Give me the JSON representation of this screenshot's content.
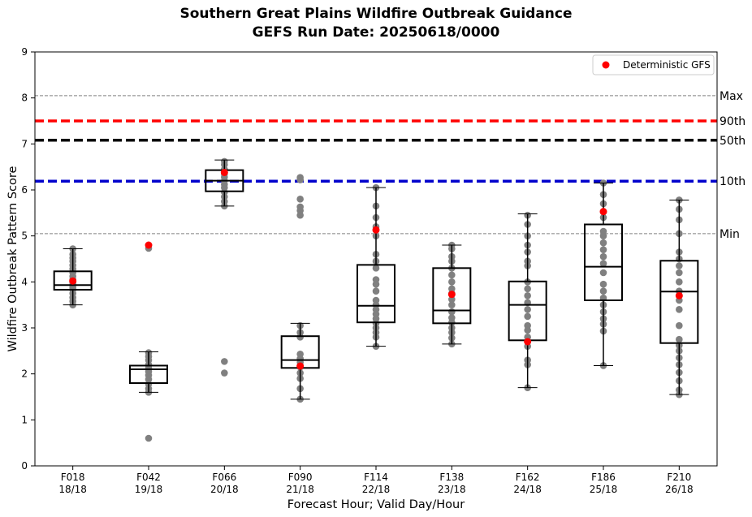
{
  "chart_data": {
    "type": "box",
    "title": "Southern Great Plains Wildfire Outbreak Guidance",
    "subtitle": "GEFS Run Date: 20250618/0000",
    "xlabel": "Forecast Hour; Valid Day/Hour",
    "ylabel": "Wildfire Outbreak Pattern Score",
    "ylim": [
      0,
      9
    ],
    "yticks": [
      "0",
      "1",
      "2",
      "3",
      "4",
      "5",
      "6",
      "7",
      "8",
      "9"
    ],
    "grid": false,
    "legend": {
      "position": "top-right",
      "entries": [
        {
          "label": "Deterministic GFS",
          "color": "#ff0000",
          "marker": "circle"
        }
      ]
    },
    "reference_lines": [
      {
        "label": "Max",
        "value": 8.05,
        "color": "#808080",
        "style": "thin-dashed"
      },
      {
        "label": "90th",
        "value": 7.5,
        "color": "#ff0000",
        "style": "thick-dashed"
      },
      {
        "label": "50th",
        "value": 7.08,
        "color": "#000000",
        "style": "thick-dashed"
      },
      {
        "label": "10th",
        "value": 6.19,
        "color": "#0000cc",
        "style": "thick-dashed"
      },
      {
        "label": "Min",
        "value": 5.05,
        "color": "#808080",
        "style": "thin-dashed"
      }
    ],
    "categories": [
      {
        "hour": "F018",
        "valid": "18/18",
        "whisker_low": 3.5,
        "q1": 3.83,
        "median": 3.93,
        "q3": 4.23,
        "whisker_high": 4.72,
        "gfs": 4.02,
        "members": [
          3.5,
          3.58,
          3.66,
          3.75,
          3.83,
          3.88,
          3.93,
          3.98,
          4.05,
          4.12,
          4.2,
          4.28,
          4.36,
          4.45,
          4.52,
          4.6,
          4.72
        ]
      },
      {
        "hour": "F042",
        "valid": "19/18",
        "whisker_low": 1.6,
        "q1": 1.8,
        "median": 2.1,
        "q3": 2.18,
        "whisker_high": 2.48,
        "gfs": 4.8,
        "members": [
          0.6,
          1.6,
          1.68,
          1.78,
          1.88,
          1.97,
          2.05,
          2.13,
          2.2,
          2.3,
          2.38,
          2.46,
          4.73
        ]
      },
      {
        "hour": "F066",
        "valid": "20/18",
        "whisker_low": 5.65,
        "q1": 5.97,
        "median": 6.2,
        "q3": 6.43,
        "whisker_high": 6.65,
        "gfs": 6.38,
        "members": [
          2.02,
          2.27,
          5.65,
          5.75,
          5.85,
          5.95,
          6.05,
          6.12,
          6.2,
          6.28,
          6.35,
          6.45,
          6.55,
          6.62
        ]
      },
      {
        "hour": "F090",
        "valid": "21/18",
        "whisker_low": 1.45,
        "q1": 2.13,
        "median": 2.3,
        "q3": 2.82,
        "whisker_high": 3.1,
        "gfs": 2.17,
        "members": [
          1.45,
          1.68,
          1.9,
          2.02,
          2.15,
          2.25,
          2.33,
          2.43,
          2.8,
          2.9,
          3.05,
          5.45,
          5.55,
          5.63,
          5.8,
          6.22,
          6.27
        ]
      },
      {
        "hour": "F114",
        "valid": "22/18",
        "whisker_low": 2.6,
        "q1": 3.12,
        "median": 3.48,
        "q3": 4.37,
        "whisker_high": 6.05,
        "gfs": 5.13,
        "members": [
          2.6,
          2.8,
          2.9,
          3.0,
          3.1,
          3.2,
          3.3,
          3.4,
          3.5,
          3.6,
          3.8,
          3.95,
          4.05,
          4.3,
          4.45,
          4.6,
          5.0,
          5.2,
          5.4,
          5.65,
          6.05
        ]
      },
      {
        "hour": "F138",
        "valid": "23/18",
        "whisker_low": 2.65,
        "q1": 3.1,
        "median": 3.38,
        "q3": 4.3,
        "whisker_high": 4.8,
        "gfs": 3.73,
        "members": [
          2.65,
          2.78,
          2.9,
          3.0,
          3.12,
          3.22,
          3.35,
          3.5,
          3.62,
          3.75,
          3.85,
          4.0,
          4.15,
          4.3,
          4.45,
          4.55,
          4.72,
          4.8
        ]
      },
      {
        "hour": "F162",
        "valid": "24/18",
        "whisker_low": 1.7,
        "q1": 2.73,
        "median": 3.5,
        "q3": 4.01,
        "whisker_high": 5.48,
        "gfs": 2.7,
        "members": [
          1.7,
          2.2,
          2.3,
          2.6,
          2.8,
          2.95,
          3.05,
          3.25,
          3.4,
          3.55,
          3.7,
          3.85,
          4.0,
          4.35,
          4.45,
          4.65,
          4.8,
          5.0,
          5.25,
          5.45
        ]
      },
      {
        "hour": "F186",
        "valid": "25/18",
        "whisker_low": 2.18,
        "q1": 3.6,
        "median": 4.33,
        "q3": 5.25,
        "whisker_high": 6.15,
        "gfs": 5.53,
        "members": [
          2.18,
          2.93,
          3.08,
          3.2,
          3.35,
          3.5,
          3.65,
          3.8,
          3.95,
          4.2,
          4.4,
          4.55,
          4.7,
          4.85,
          5.0,
          5.1,
          5.4,
          5.52,
          5.7,
          5.9,
          6.15
        ]
      },
      {
        "hour": "F210",
        "valid": "26/18",
        "whisker_low": 1.55,
        "q1": 2.67,
        "median": 3.79,
        "q3": 4.46,
        "whisker_high": 5.78,
        "gfs": 3.7,
        "members": [
          1.55,
          1.65,
          1.85,
          2.03,
          2.2,
          2.35,
          2.5,
          2.62,
          2.75,
          3.05,
          3.4,
          3.6,
          3.8,
          4.0,
          4.2,
          4.35,
          4.5,
          4.65,
          5.05,
          5.35,
          5.58,
          5.78
        ]
      }
    ]
  }
}
